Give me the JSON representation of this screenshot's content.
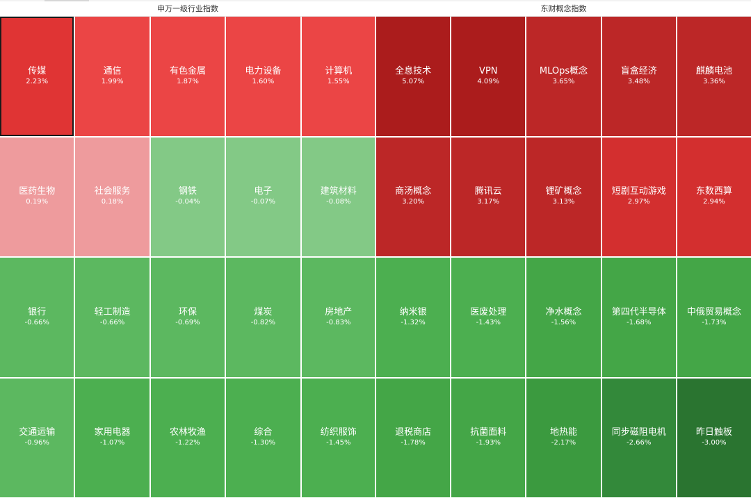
{
  "left_panel": {
    "title": "申万一级行业指数",
    "tiles": [
      {
        "name": "传媒",
        "pct": "2.23%",
        "color": "#e03434",
        "selected": true
      },
      {
        "name": "通信",
        "pct": "1.99%",
        "color": "#eb4545"
      },
      {
        "name": "有色金属",
        "pct": "1.87%",
        "color": "#eb4545"
      },
      {
        "name": "电力设备",
        "pct": "1.60%",
        "color": "#eb4545"
      },
      {
        "name": "计算机",
        "pct": "1.55%",
        "color": "#eb4545"
      },
      {
        "name": "医药生物",
        "pct": "0.19%",
        "color": "#ee9b9d"
      },
      {
        "name": "社会服务",
        "pct": "0.18%",
        "color": "#ee9b9d"
      },
      {
        "name": "钢铁",
        "pct": "-0.04%",
        "color": "#83c986"
      },
      {
        "name": "电子",
        "pct": "-0.07%",
        "color": "#83c986"
      },
      {
        "name": "建筑材料",
        "pct": "-0.08%",
        "color": "#83c986"
      },
      {
        "name": "银行",
        "pct": "-0.66%",
        "color": "#5cb860"
      },
      {
        "name": "轻工制造",
        "pct": "-0.66%",
        "color": "#5cb860"
      },
      {
        "name": "环保",
        "pct": "-0.69%",
        "color": "#5cb860"
      },
      {
        "name": "煤炭",
        "pct": "-0.82%",
        "color": "#5cb860"
      },
      {
        "name": "房地产",
        "pct": "-0.83%",
        "color": "#5cb860"
      },
      {
        "name": "交通运输",
        "pct": "-0.96%",
        "color": "#5cb860"
      },
      {
        "name": "家用电器",
        "pct": "-1.07%",
        "color": "#4caf50"
      },
      {
        "name": "农林牧渔",
        "pct": "-1.22%",
        "color": "#4caf50"
      },
      {
        "name": "综合",
        "pct": "-1.30%",
        "color": "#4caf50"
      },
      {
        "name": "纺织服饰",
        "pct": "-1.45%",
        "color": "#4caf50"
      }
    ]
  },
  "right_panel": {
    "title": "东财概念指数",
    "tiles": [
      {
        "name": "全息技术",
        "pct": "5.07%",
        "color": "#ab1c1c"
      },
      {
        "name": "VPN",
        "pct": "4.09%",
        "color": "#ab1c1c"
      },
      {
        "name": "MLOps概念",
        "pct": "3.65%",
        "color": "#bc2727"
      },
      {
        "name": "盲盒经济",
        "pct": "3.48%",
        "color": "#bc2727"
      },
      {
        "name": "麒麟电池",
        "pct": "3.36%",
        "color": "#bc2727"
      },
      {
        "name": "商汤概念",
        "pct": "3.20%",
        "color": "#bc2727"
      },
      {
        "name": "腾讯云",
        "pct": "3.17%",
        "color": "#bc2727"
      },
      {
        "name": "锂矿概念",
        "pct": "3.13%",
        "color": "#bc2727"
      },
      {
        "name": "短剧互动游戏",
        "pct": "2.97%",
        "color": "#d32f2f"
      },
      {
        "name": "东数西算",
        "pct": "2.94%",
        "color": "#d32f2f"
      },
      {
        "name": "纳米银",
        "pct": "-1.32%",
        "color": "#4caf50"
      },
      {
        "name": "医废处理",
        "pct": "-1.43%",
        "color": "#4caf50"
      },
      {
        "name": "净水概念",
        "pct": "-1.56%",
        "color": "#44a647"
      },
      {
        "name": "第四代半导体",
        "pct": "-1.68%",
        "color": "#44a647"
      },
      {
        "name": "中俄贸易概念",
        "pct": "-1.73%",
        "color": "#44a647"
      },
      {
        "name": "退税商店",
        "pct": "-1.78%",
        "color": "#44a647"
      },
      {
        "name": "抗菌面料",
        "pct": "-1.93%",
        "color": "#44a647"
      },
      {
        "name": "地热能",
        "pct": "-2.17%",
        "color": "#3b9a3f"
      },
      {
        "name": "同步磁阻电机",
        "pct": "-2.66%",
        "color": "#33893a"
      },
      {
        "name": "昨日触板",
        "pct": "-3.00%",
        "color": "#2a7430"
      }
    ]
  }
}
